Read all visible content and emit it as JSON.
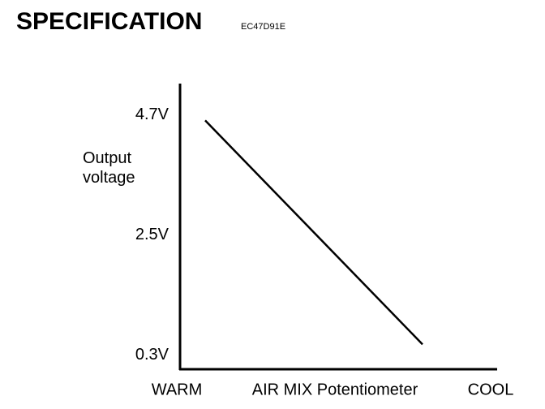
{
  "chart_data": {
    "type": "line",
    "title": "SPECIFICATION",
    "subtitle": "EC47D91E",
    "y_label": "Output voltage",
    "x_label": "AIR MIX Potentiometer",
    "categories": [
      "WARM",
      "COOL"
    ],
    "values": [
      4.6,
      0.5
    ],
    "color": "#000000",
    "ylim": [
      0,
      5.2
    ],
    "yticks": [
      {
        "value": 0.3,
        "label": "0.3V"
      },
      {
        "value": 2.5,
        "label": "2.5V"
      },
      {
        "value": 4.7,
        "label": "4.7V"
      }
    ],
    "grid": false
  }
}
